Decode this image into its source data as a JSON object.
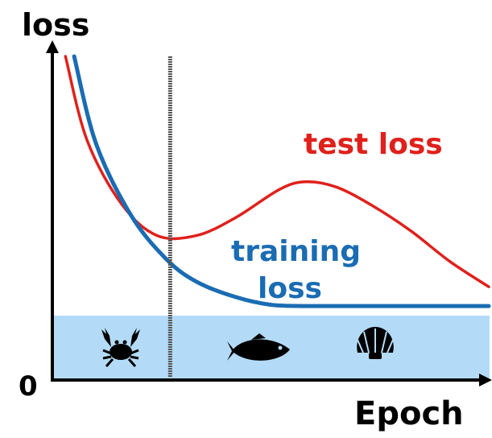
{
  "chart_data": {
    "type": "line",
    "title": "",
    "ylabel": "loss",
    "xlabel": "Epoch",
    "ytick_zero": "0",
    "series": [
      {
        "name": "test loss",
        "color": "#e0201b",
        "x": [
          0.03,
          0.08,
          0.16,
          0.24,
          0.33,
          0.42,
          0.52,
          0.58,
          0.65,
          0.73,
          0.82,
          0.91,
          1.0
        ],
        "y": [
          1.0,
          0.67,
          0.42,
          0.3,
          0.3,
          0.37,
          0.48,
          0.51,
          0.49,
          0.42,
          0.32,
          0.2,
          0.1
        ]
      },
      {
        "name": "training loss",
        "color": "#1a6cb3",
        "x": [
          0.05,
          0.1,
          0.18,
          0.26,
          0.33,
          0.42,
          0.5,
          0.58,
          0.7,
          0.85,
          1.0
        ],
        "y": [
          1.0,
          0.66,
          0.38,
          0.21,
          0.12,
          0.06,
          0.03,
          0.025,
          0.025,
          0.025,
          0.025
        ]
      }
    ],
    "annotations": {
      "vertical_line_x": 0.27,
      "shaded_band": {
        "y_top": 0.025,
        "color": "#b3dbf7"
      },
      "band_icons": [
        "crab-icon",
        "fish-icon",
        "shell-icon"
      ]
    }
  }
}
